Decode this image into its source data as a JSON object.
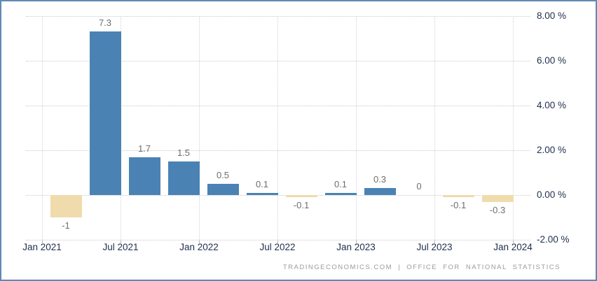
{
  "chart_data": {
    "type": "bar",
    "title": "",
    "categories": [
      "Q1 2021",
      "Q2 2021",
      "Q3 2021",
      "Q4 2021",
      "Q1 2022",
      "Q2 2022",
      "Q3 2022",
      "Q4 2022",
      "Q1 2023",
      "Q2 2023",
      "Q3 2023",
      "Q4 2023"
    ],
    "values": [
      -1,
      7.3,
      1.7,
      1.5,
      0.5,
      0.1,
      -0.1,
      0.1,
      0.3,
      0,
      -0.1,
      -0.3
    ],
    "value_labels": [
      "-1",
      "7.3",
      "1.7",
      "1.5",
      "0.5",
      "0.1",
      "-0.1",
      "0.1",
      "0.3",
      "0",
      "-0.1",
      "-0.3"
    ],
    "x_tick_labels": [
      "Jan 2021",
      "Jul 2021",
      "Jan 2022",
      "Jul 2022",
      "Jan 2023",
      "Jul 2023",
      "Jan 2024"
    ],
    "y_tick_labels": [
      "8.00 %",
      "6.00 %",
      "4.00 %",
      "2.00 %",
      "0.00 %",
      "-2.00 %"
    ],
    "y_tick_values": [
      8,
      6,
      4,
      2,
      0,
      -2
    ],
    "ylim": [
      -2,
      8
    ],
    "xlabel": "",
    "ylabel": "",
    "grid": "dotted",
    "legend": "none",
    "y_axis_side": "right",
    "colors": {
      "positive_bar": "#4A82B4",
      "negative_bar": "#F0DBAC",
      "gridline": "#c9c9c9",
      "axis_text": "#1F2F4D",
      "value_label_text": "#6e6e6e",
      "frame_border": "#6089B4"
    }
  },
  "footer": {
    "source_text": "TRADINGECONOMICS.COM | OFFICE FOR NATIONAL STATISTICS"
  }
}
